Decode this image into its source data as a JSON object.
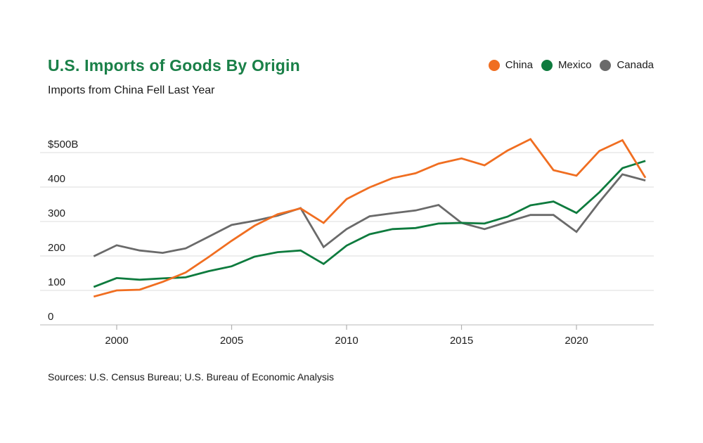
{
  "header": {
    "title": "U.S. Imports of Goods By Origin",
    "subtitle": "Imports from China Fell Last Year",
    "title_color": "#1a8048"
  },
  "legend": [
    {
      "label": "China",
      "color": "#f06e21"
    },
    {
      "label": "Mexico",
      "color": "#0e7b3e"
    },
    {
      "label": "Canada",
      "color": "#6a6a6a"
    }
  ],
  "footer": {
    "sources": "Sources: U.S. Census Bureau; U.S. Bureau of Economic Analysis"
  },
  "chart_data": {
    "type": "line",
    "title": "U.S. Imports of Goods By Origin",
    "subtitle": "Imports from China Fell Last Year",
    "unit": "billions of U.S. dollars",
    "x": [
      1999,
      2000,
      2001,
      2002,
      2003,
      2004,
      2005,
      2006,
      2007,
      2008,
      2009,
      2010,
      2011,
      2012,
      2013,
      2014,
      2015,
      2016,
      2017,
      2018,
      2019,
      2020,
      2021,
      2022,
      2023
    ],
    "series": [
      {
        "name": "China",
        "color": "#f06e21",
        "values": [
          82,
          100,
          102,
          125,
          152,
          197,
          244,
          288,
          321,
          338,
          296,
          365,
          399,
          426,
          440,
          468,
          483,
          463,
          506,
          539,
          449,
          433,
          505,
          536,
          427
        ]
      },
      {
        "name": "Mexico",
        "color": "#0e7b3e",
        "values": [
          110,
          136,
          131,
          135,
          138,
          156,
          170,
          198,
          211,
          216,
          177,
          230,
          263,
          278,
          281,
          294,
          296,
          294,
          314,
          347,
          358,
          325,
          385,
          455,
          476
        ]
      },
      {
        "name": "Canada",
        "color": "#6a6a6a",
        "values": [
          199,
          231,
          216,
          209,
          222,
          256,
          290,
          302,
          317,
          339,
          226,
          278,
          315,
          324,
          332,
          348,
          296,
          278,
          299,
          319,
          319,
          270,
          357,
          437,
          419
        ]
      }
    ],
    "y_axis": {
      "ticks": [
        500,
        400,
        300,
        200,
        100,
        0
      ],
      "labels": [
        "$500B",
        "400",
        "300",
        "200",
        "100",
        "0"
      ],
      "range": [
        0,
        500
      ]
    },
    "x_axis": {
      "ticks": [
        2000,
        2005,
        2010,
        2015,
        2020
      ],
      "range": [
        1999,
        2023
      ]
    },
    "grid": true,
    "legend_position": "top-right"
  }
}
